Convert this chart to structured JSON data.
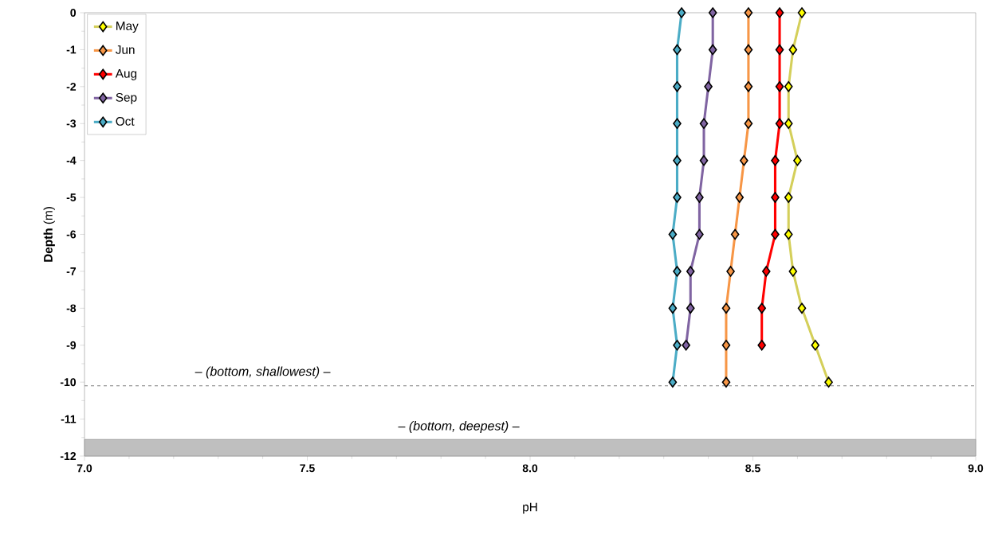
{
  "chart_data": {
    "type": "line",
    "xlabel": "pH",
    "ylabel": "**Depth** (m)",
    "xlim": [
      7,
      9
    ],
    "xticks": [
      {
        "value": 7,
        "label": "7.0"
      },
      {
        "value": 7.5,
        "label": "7.5"
      },
      {
        "value": 8,
        "label": "8.0"
      },
      {
        "value": 8.5,
        "label": "8.5"
      },
      {
        "value": 9,
        "label": "9.0"
      }
    ],
    "ylim": [
      -12,
      0
    ],
    "yticks": [
      0,
      -1,
      -2,
      -3,
      -4,
      -5,
      -6,
      -7,
      -8,
      -9,
      -10,
      -11,
      -12
    ],
    "legend": "top left",
    "marker": "diamond",
    "line_style": "solid",
    "grid": false,
    "series": [
      {
        "name": "May",
        "color": "#d4cf5a",
        "colors": [
          "#ffff00",
          "#ffff00",
          "#ffff00",
          "#ffff00",
          "#ffff00",
          "#ffff00",
          "#ffff00",
          "#ffff00",
          "#ffff00",
          "#ffff00",
          "#ffff00"
        ],
        "x": [
          8.61,
          8.59,
          8.58,
          8.58,
          8.6,
          8.58,
          8.58,
          8.59,
          8.61,
          8.64,
          8.67
        ],
        "values": [
          0,
          -1,
          -2,
          -3,
          -4,
          -5,
          -6,
          -7,
          -8,
          -9,
          -10
        ]
      },
      {
        "name": "Jun",
        "color": "#f79646",
        "x": [
          8.49,
          8.49,
          8.49,
          8.49,
          8.48,
          8.47,
          8.46,
          8.45,
          8.44,
          8.44,
          8.44
        ],
        "values": [
          0,
          -1,
          -2,
          -3,
          -4,
          -5,
          -6,
          -7,
          -8,
          -9,
          -10
        ]
      },
      {
        "name": "Aug",
        "color": "#ff0000",
        "x": [
          8.56,
          8.56,
          8.56,
          8.56,
          8.55,
          8.55,
          8.55,
          8.53,
          8.52,
          8.52
        ],
        "values": [
          0,
          -1,
          -2,
          -3,
          -4,
          -5,
          -6,
          -7,
          -8,
          -9
        ]
      },
      {
        "name": "Sep",
        "color": "#8064a2",
        "x": [
          8.41,
          8.41,
          8.4,
          8.39,
          8.39,
          8.38,
          8.38,
          8.36,
          8.36,
          8.35
        ],
        "values": [
          0,
          -1,
          -2,
          -3,
          -4,
          -5,
          -6,
          -7,
          -8,
          -9
        ]
      },
      {
        "name": "Oct",
        "color": "#4bacc6",
        "x": [
          8.34,
          8.33,
          8.33,
          8.33,
          8.33,
          8.33,
          8.32,
          8.33,
          8.32,
          8.33,
          8.32
        ],
        "values": [
          0,
          -1,
          -2,
          -3,
          -4,
          -5,
          -6,
          -7,
          -8,
          -9,
          -10
        ]
      }
    ],
    "ref_lines": [
      {
        "axis": "y",
        "value": -10.1,
        "label": "– *(bottom, shallowest)* –",
        "color": "#808080",
        "line_style": "dashed"
      }
    ],
    "bands": [
      {
        "axis": "y",
        "from": -12,
        "to": -11.55,
        "label": "– *(bottom, deepest)* –",
        "color": "#bfbfbf"
      }
    ]
  }
}
